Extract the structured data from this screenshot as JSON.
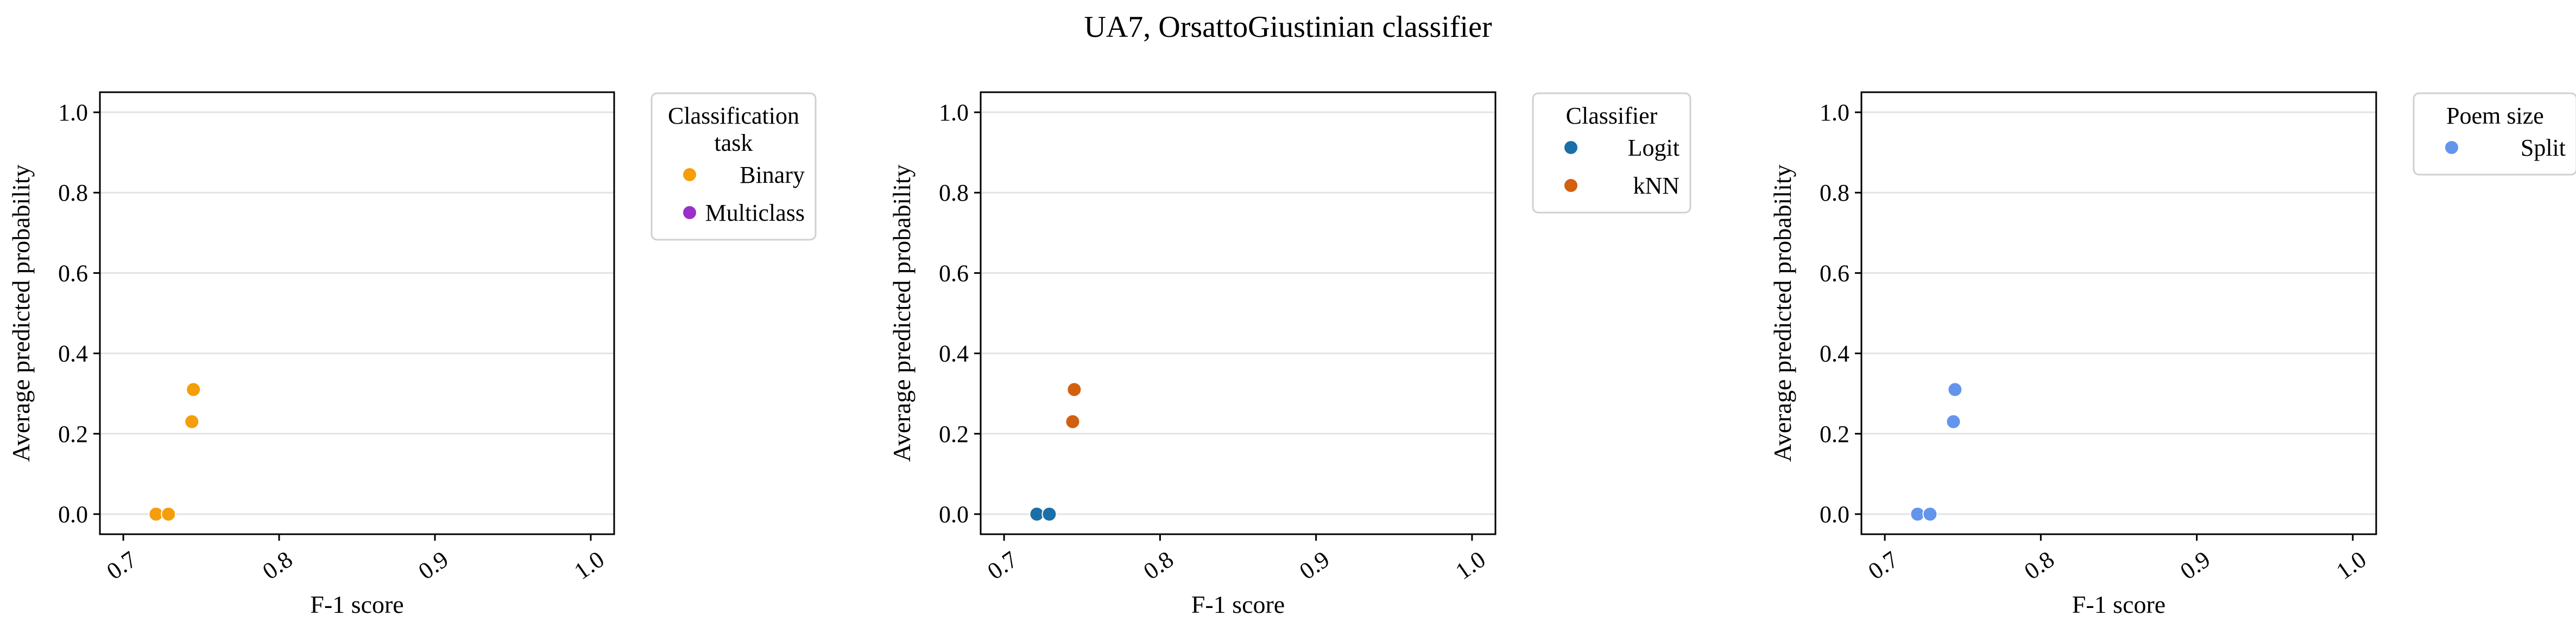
{
  "suptitle": "UA7, OrsattoGiustinian classifier",
  "chart_data": [
    {
      "type": "scatter",
      "xlabel": "F-1 score",
      "ylabel": "Average predicted probability",
      "xlim": [
        0.685,
        1.015
      ],
      "ylim": [
        -0.05,
        1.05
      ],
      "xticks": [
        "0.7",
        "0.8",
        "0.9",
        "1.0"
      ],
      "yticks": [
        "0.0",
        "0.2",
        "0.4",
        "0.6",
        "0.8",
        "1.0"
      ],
      "grid": "horizontal",
      "legend": {
        "title": "Classification\ntask",
        "placement": "outside-right-top",
        "entries": [
          {
            "label": "Binary",
            "color": "#f59e0b"
          },
          {
            "label": "Multiclass",
            "color": "#9b30c8"
          }
        ]
      },
      "series": [
        {
          "name": "Binary",
          "color": "#f59e0b",
          "points": [
            [
              0.721,
              0.0
            ],
            [
              0.729,
              0.0
            ],
            [
              0.744,
              0.23
            ],
            [
              0.745,
              0.31
            ]
          ]
        },
        {
          "name": "Multiclass",
          "color": "#9b30c8",
          "points": []
        }
      ]
    },
    {
      "type": "scatter",
      "xlabel": "F-1 score",
      "ylabel": "Average predicted probability",
      "xlim": [
        0.685,
        1.015
      ],
      "ylim": [
        -0.05,
        1.05
      ],
      "xticks": [
        "0.7",
        "0.8",
        "0.9",
        "1.0"
      ],
      "yticks": [
        "0.0",
        "0.2",
        "0.4",
        "0.6",
        "0.8",
        "1.0"
      ],
      "grid": "horizontal",
      "legend": {
        "title": "Classifier",
        "placement": "outside-right-top",
        "entries": [
          {
            "label": "Logit",
            "color": "#1a6fa8"
          },
          {
            "label": "kNN",
            "color": "#d2600f"
          }
        ]
      },
      "series": [
        {
          "name": "Logit",
          "color": "#1a6fa8",
          "points": [
            [
              0.721,
              0.0
            ],
            [
              0.729,
              0.0
            ]
          ]
        },
        {
          "name": "kNN",
          "color": "#d2600f",
          "points": [
            [
              0.744,
              0.23
            ],
            [
              0.745,
              0.31
            ]
          ]
        }
      ]
    },
    {
      "type": "scatter",
      "xlabel": "F-1 score",
      "ylabel": "Average predicted probability",
      "xlim": [
        0.685,
        1.015
      ],
      "ylim": [
        -0.05,
        1.05
      ],
      "xticks": [
        "0.7",
        "0.8",
        "0.9",
        "1.0"
      ],
      "yticks": [
        "0.0",
        "0.2",
        "0.4",
        "0.6",
        "0.8",
        "1.0"
      ],
      "grid": "horizontal",
      "legend": {
        "title": "Poem size",
        "placement": "outside-right-top",
        "entries": [
          {
            "label": "Split",
            "color": "#6495ed"
          }
        ]
      },
      "series": [
        {
          "name": "Split",
          "color": "#6495ed",
          "points": [
            [
              0.721,
              0.0
            ],
            [
              0.729,
              0.0
            ],
            [
              0.744,
              0.23
            ],
            [
              0.745,
              0.31
            ]
          ]
        }
      ]
    }
  ]
}
